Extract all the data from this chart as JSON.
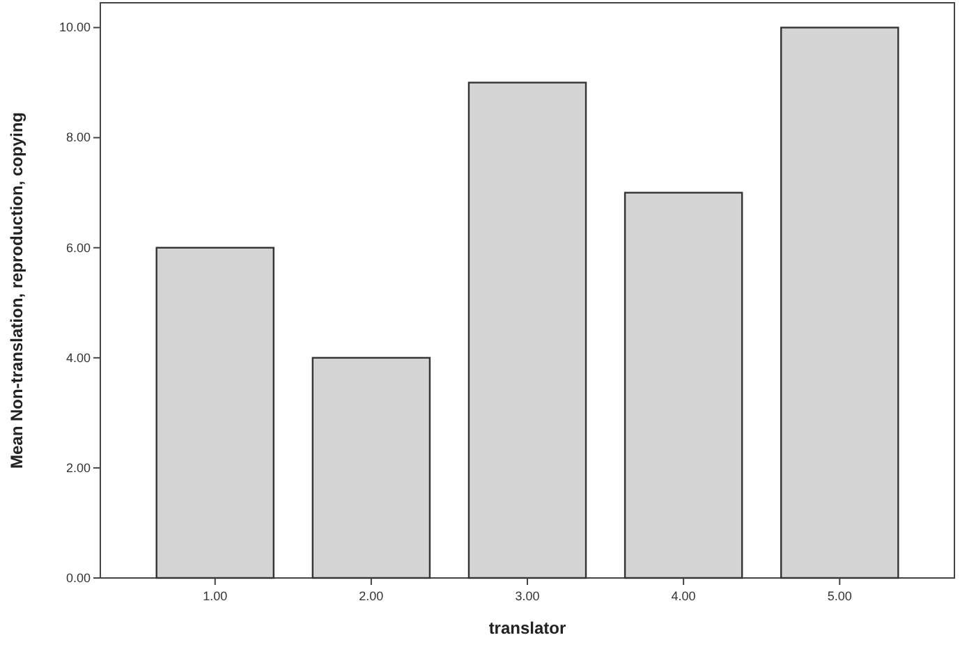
{
  "chart_data": {
    "type": "bar",
    "xlabel": "translator",
    "ylabel": "Mean Non-translation, reproduction, copying",
    "categories": [
      "1.00",
      "2.00",
      "3.00",
      "4.00",
      "5.00"
    ],
    "values": [
      6,
      4,
      9,
      7,
      10
    ],
    "color": "#d4d4d4",
    "ylim": [
      0,
      10.45
    ],
    "yticks": [
      {
        "value": 0,
        "label": "0.00"
      },
      {
        "value": 2,
        "label": "2.00"
      },
      {
        "value": 4,
        "label": "4.00"
      },
      {
        "value": 6,
        "label": "6.00"
      },
      {
        "value": 8,
        "label": "8.00"
      },
      {
        "value": 10,
        "label": "10.00"
      }
    ],
    "grid": false
  }
}
